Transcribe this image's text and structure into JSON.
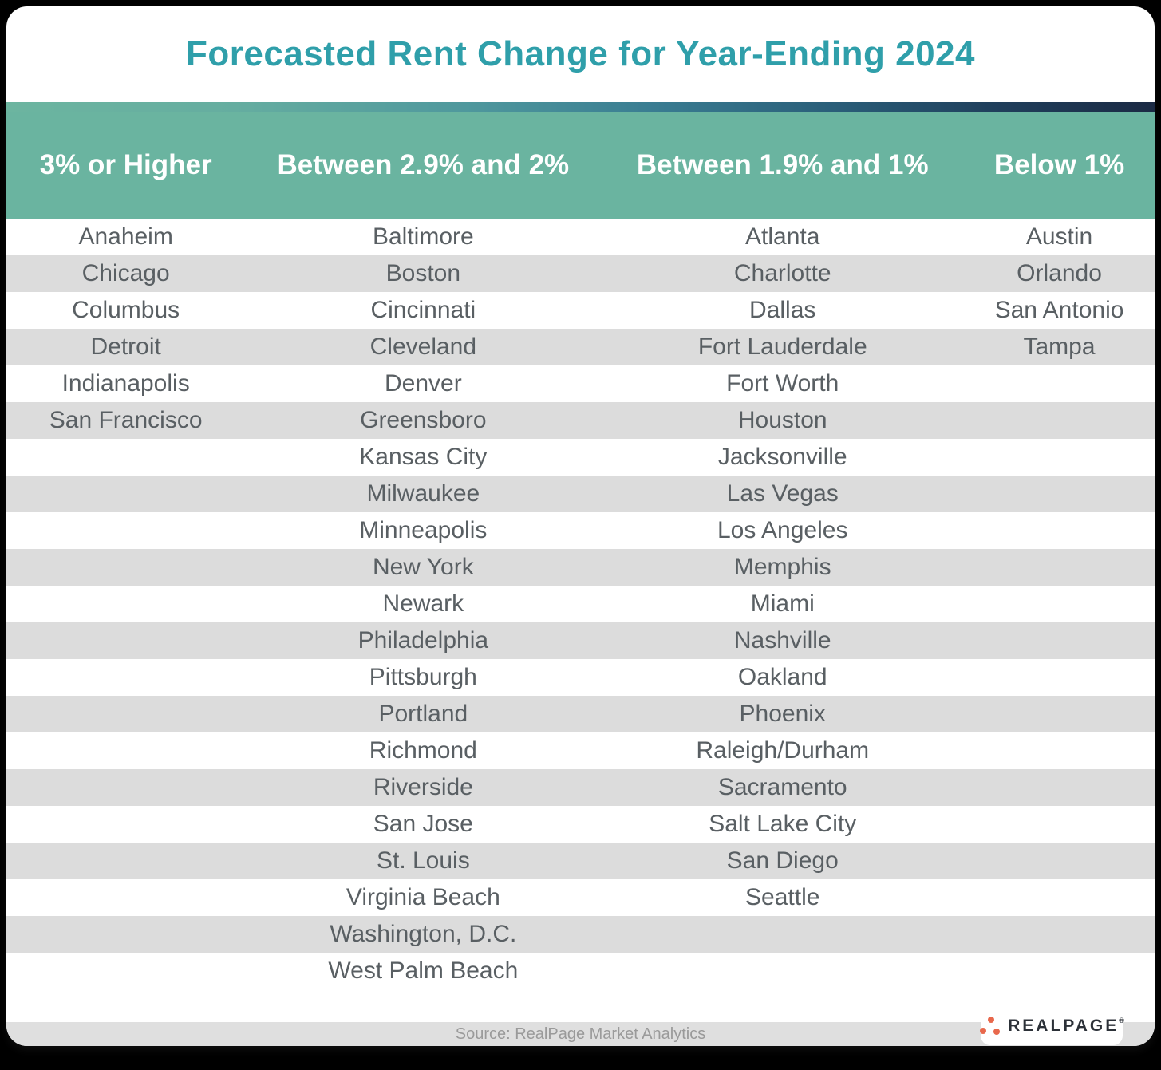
{
  "chart_data": {
    "type": "table",
    "title": "Forecasted Rent Change for Year-Ending 2024",
    "columns": [
      {
        "header": "3% or Higher",
        "cities": [
          "Anaheim",
          "Chicago",
          "Columbus",
          "Detroit",
          "Indianapolis",
          "San Francisco"
        ]
      },
      {
        "header": "Between 2.9% and 2%",
        "cities": [
          "Baltimore",
          "Boston",
          "Cincinnati",
          "Cleveland",
          "Denver",
          "Greensboro",
          "Kansas City",
          "Milwaukee",
          "Minneapolis",
          "New York",
          "Newark",
          "Philadelphia",
          "Pittsburgh",
          "Portland",
          "Richmond",
          "Riverside",
          "San Jose",
          "St. Louis",
          "Virginia Beach",
          "Washington, D.C.",
          "West Palm Beach"
        ]
      },
      {
        "header": "Between 1.9% and 1%",
        "cities": [
          "Atlanta",
          "Charlotte",
          "Dallas",
          "Fort Lauderdale",
          "Fort Worth",
          "Houston",
          "Jacksonville",
          "Las Vegas",
          "Los Angeles",
          "Memphis",
          "Miami",
          "Nashville",
          "Oakland",
          "Phoenix",
          "Raleigh/Durham",
          "Sacramento",
          "Salt Lake City",
          "San Diego",
          "Seattle"
        ]
      },
      {
        "header": "Below 1%",
        "cities": [
          "Austin",
          "Orlando",
          "San Antonio",
          "Tampa"
        ]
      }
    ],
    "layout": {
      "row_striping": "alternating white / light gray",
      "header_position": "top band"
    }
  },
  "footer": {
    "source": "Source: RealPage Market Analytics"
  },
  "logo": {
    "text": "REALPAGE",
    "trademark": "®"
  },
  "colors": {
    "title_teal": "#2f9faa",
    "header_band_green": "#6ab4a0",
    "gradient_left_green": "#6cb5a0",
    "gradient_right_navy": "#1b2a44",
    "stripe_gray": "#dcdcdc",
    "footer_gray": "#dfdfdf",
    "city_text": "#595f63",
    "source_text": "#9a9a9a",
    "logo_dot_coral": "#e8684c",
    "logo_text_dark": "#2c3138"
  }
}
